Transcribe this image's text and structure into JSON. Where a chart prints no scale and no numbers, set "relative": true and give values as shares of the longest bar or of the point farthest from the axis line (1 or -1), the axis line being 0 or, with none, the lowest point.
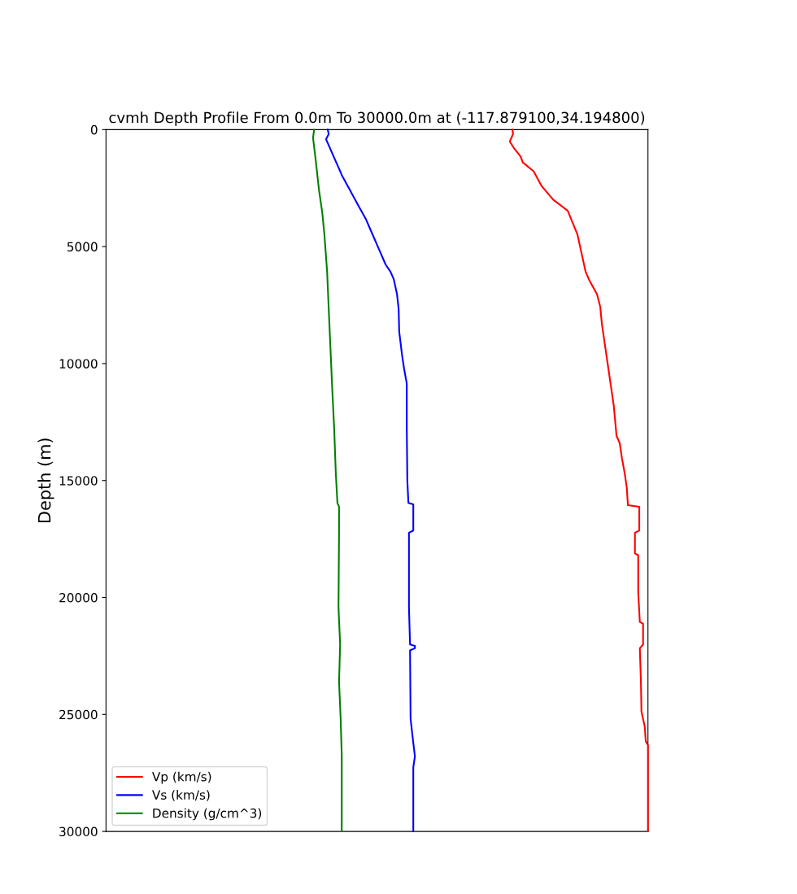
{
  "chart_data": {
    "type": "line",
    "title": "cvmh Depth Profile From 0.0m To 30000.0m at (-117.879100,34.194800)",
    "ylabel": "Depth (m)",
    "orientation": "horizontal",
    "relative": true,
    "ylim": [
      30000,
      0
    ],
    "yticks": [
      0,
      5000,
      10000,
      15000,
      20000,
      25000,
      30000
    ],
    "tick_labels": "y",
    "grid": false,
    "legend": "bottom left",
    "series": [
      {
        "name": "Vp (km/s)",
        "color": "#ff0000",
        "x": [
          0,
          190,
          510,
          830,
          1150,
          1400,
          1780,
          2420,
          2990,
          3470,
          4490,
          5450,
          6080,
          6400,
          7040,
          7580,
          8310,
          9270,
          10220,
          10860,
          11820,
          13090,
          13410,
          14050,
          14680,
          15320,
          16050,
          16120,
          17140,
          17230,
          18120,
          18190,
          19780,
          21050,
          21120,
          22010,
          22170,
          23600,
          24880,
          25510,
          26150,
          26310,
          30000
        ],
        "values": [
          0.75,
          0.751,
          0.745,
          0.754,
          0.765,
          0.769,
          0.789,
          0.804,
          0.825,
          0.852,
          0.87,
          0.879,
          0.885,
          0.891,
          0.906,
          0.912,
          0.915,
          0.921,
          0.927,
          0.931,
          0.937,
          0.942,
          0.948,
          0.952,
          0.957,
          0.961,
          0.963,
          0.984,
          0.984,
          0.976,
          0.976,
          0.982,
          0.982,
          0.985,
          0.991,
          0.991,
          0.985,
          0.987,
          0.988,
          0.994,
          0.996,
          1.0,
          1.0
        ]
      },
      {
        "name": "Vs (km/s)",
        "color": "#0000ff",
        "x": [
          0,
          190,
          410,
          670,
          1150,
          1620,
          1940,
          2580,
          3220,
          3850,
          4490,
          5130,
          5770,
          6080,
          6400,
          7040,
          7680,
          8630,
          9590,
          10220,
          10860,
          12770,
          15000,
          15960,
          16020,
          17140,
          17230,
          20420,
          22010,
          22070,
          22170,
          22260,
          25190,
          26210,
          26790,
          27260,
          30000
        ],
        "values": [
          0.409,
          0.411,
          0.406,
          0.411,
          0.42,
          0.429,
          0.435,
          0.45,
          0.465,
          0.48,
          0.492,
          0.504,
          0.516,
          0.525,
          0.531,
          0.537,
          0.54,
          0.541,
          0.546,
          0.55,
          0.555,
          0.555,
          0.556,
          0.558,
          0.567,
          0.567,
          0.559,
          0.559,
          0.561,
          0.57,
          0.57,
          0.561,
          0.562,
          0.567,
          0.57,
          0.567,
          0.567
        ]
      },
      {
        "name": "Density (g/cm^3)",
        "color": "#008000",
        "x": [
          0,
          350,
          1310,
          2580,
          3540,
          4490,
          6080,
          7680,
          9270,
          10860,
          12770,
          14680,
          15960,
          16120,
          17230,
          20420,
          22010,
          23600,
          25190,
          26790,
          30000
        ],
        "values": [
          0.384,
          0.382,
          0.387,
          0.393,
          0.399,
          0.403,
          0.408,
          0.411,
          0.414,
          0.417,
          0.421,
          0.424,
          0.427,
          0.43,
          0.43,
          0.429,
          0.432,
          0.43,
          0.433,
          0.435,
          0.435
        ]
      }
    ]
  }
}
